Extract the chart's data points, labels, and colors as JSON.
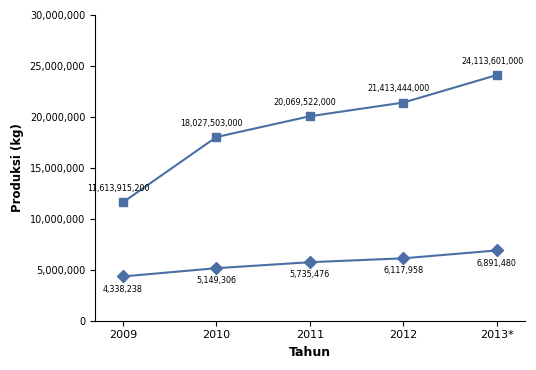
{
  "years": [
    "2009",
    "2010",
    "2011",
    "2012",
    "2013*"
  ],
  "produksi_kg": [
    4338238,
    5149306,
    5735476,
    6117958,
    6891480
  ],
  "nilai_plot_values": [
    11613915.2,
    18027503.0,
    20069522.0,
    21413444.0,
    24113601.0
  ],
  "produksi_labels": [
    "4,338,238",
    "5,149,306",
    "5,735,476",
    "6,117,958",
    "6,891,480"
  ],
  "nilai_labels": [
    "11,613,915,200",
    "18,027,503,000",
    "20,069,522,000",
    "21,413,444,000",
    "24,113,601,000"
  ],
  "line_color": "#4A6FA5",
  "ylabel": "Produksi (kg)",
  "xlabel": "Tahun",
  "ylim": [
    0,
    30000000
  ],
  "yticks": [
    0,
    5000000,
    10000000,
    15000000,
    20000000,
    25000000,
    30000000
  ],
  "ytick_labels": [
    "0",
    "5,000,000",
    "10,000,000",
    "15,000,000",
    "20,000,000",
    "25,000,000",
    "30,000,000"
  ],
  "bg_color": "#FFFFFF",
  "plot_bg_color": "#FFFFFF"
}
